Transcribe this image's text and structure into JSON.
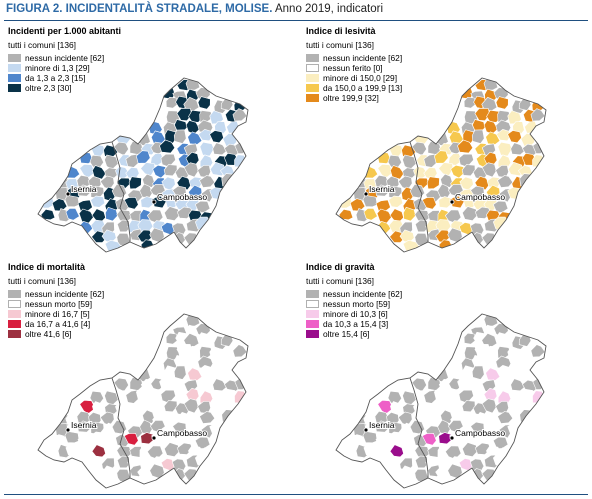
{
  "figure": {
    "title_strong": "FIGURA 2. INCIDENTALITÀ STRADALE, MOLISE.",
    "title_rest": " Anno 2019, indicatori"
  },
  "cities": [
    "Isernia",
    "Campobasso"
  ],
  "panels": [
    {
      "title": "Incidenti per 1.000 abitanti",
      "subtitle": "tutti i comuni [136]",
      "legend": [
        {
          "label": "nessun incidente [62]",
          "color": "#b2b2b2"
        },
        {
          "label": "minore di 1,3 [29]",
          "color": "#c4d9f0"
        },
        {
          "label": "da 1,3 a 2,3 [15]",
          "color": "#4f86cc"
        },
        {
          "label": "oltre 2,3 [30]",
          "color": "#0a3248"
        }
      ]
    },
    {
      "title": "Indice di lesività",
      "subtitle": "tutti i comuni [136]",
      "legend": [
        {
          "label": "nessun incidente [62]",
          "color": "#b2b2b2"
        },
        {
          "label": "nessun ferito [0]",
          "color": "#ffffff"
        },
        {
          "label": "minore di 150,0 [29]",
          "color": "#fbeec0"
        },
        {
          "label": "da 150,0 a 199,9 [13]",
          "color": "#f6c84e"
        },
        {
          "label": "oltre 199,9 [32]",
          "color": "#e48a1c"
        }
      ]
    },
    {
      "title": "Indice di mortalità",
      "subtitle": "tutti i comuni [136]",
      "legend": [
        {
          "label": "nessun incidente [62]",
          "color": "#b2b2b2"
        },
        {
          "label": "nessun morto [59]",
          "color": "#ffffff"
        },
        {
          "label": "minore di 16,7 [5]",
          "color": "#f6c9d2"
        },
        {
          "label": "da 16,7 a 41,6 [4]",
          "color": "#d81f3f"
        },
        {
          "label": "oltre 41,6 [6]",
          "color": "#9c3040"
        }
      ]
    },
    {
      "title": "Indice di gravità",
      "subtitle": "tutti i comuni [136]",
      "legend": [
        {
          "label": "nessun incidente [62]",
          "color": "#b2b2b2"
        },
        {
          "label": "nessun morto [59]",
          "color": "#ffffff"
        },
        {
          "label": "minore di 10,3 [6]",
          "color": "#f7cbea"
        },
        {
          "label": "da 10,3 a 15,4 [3]",
          "color": "#ee5fc7"
        },
        {
          "label": "oltre 15,4 [6]",
          "color": "#9a0d8c"
        }
      ]
    }
  ]
}
